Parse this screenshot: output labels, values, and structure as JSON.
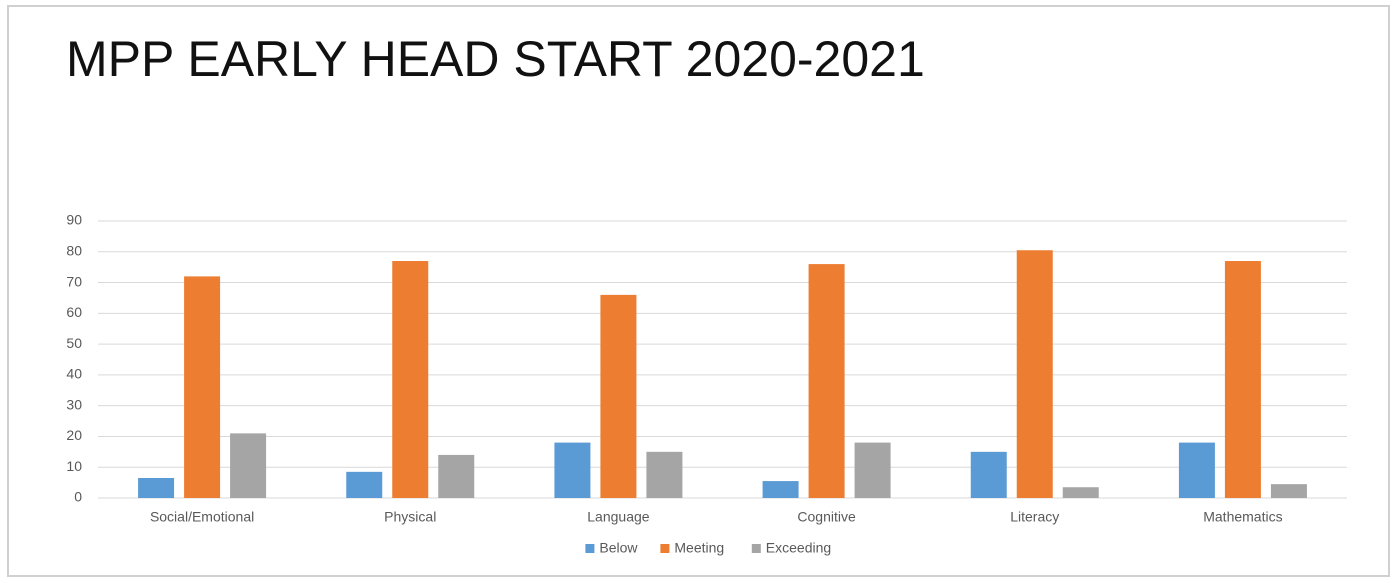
{
  "chart_data": {
    "type": "bar",
    "title": "MPP EARLY HEAD START  2020-2021",
    "categories": [
      "Social/Emotional",
      "Physical",
      "Language",
      "Cognitive",
      "Literacy",
      "Mathematics"
    ],
    "series": [
      {
        "name": "Below",
        "color": "#5b9bd5",
        "values": [
          6.5,
          8.5,
          18,
          5.5,
          15,
          18
        ]
      },
      {
        "name": "Meeting",
        "color": "#ed7d31",
        "values": [
          72,
          77,
          66,
          76,
          80.5,
          77
        ]
      },
      {
        "name": "Exceeding",
        "color": "#a5a5a5",
        "values": [
          21,
          14,
          15,
          18,
          3.5,
          4.5
        ]
      }
    ],
    "ylim": [
      0,
      90
    ],
    "yticks": [
      0,
      10,
      20,
      30,
      40,
      50,
      60,
      70,
      80,
      90
    ],
    "grid": true,
    "legend": "bottom"
  }
}
